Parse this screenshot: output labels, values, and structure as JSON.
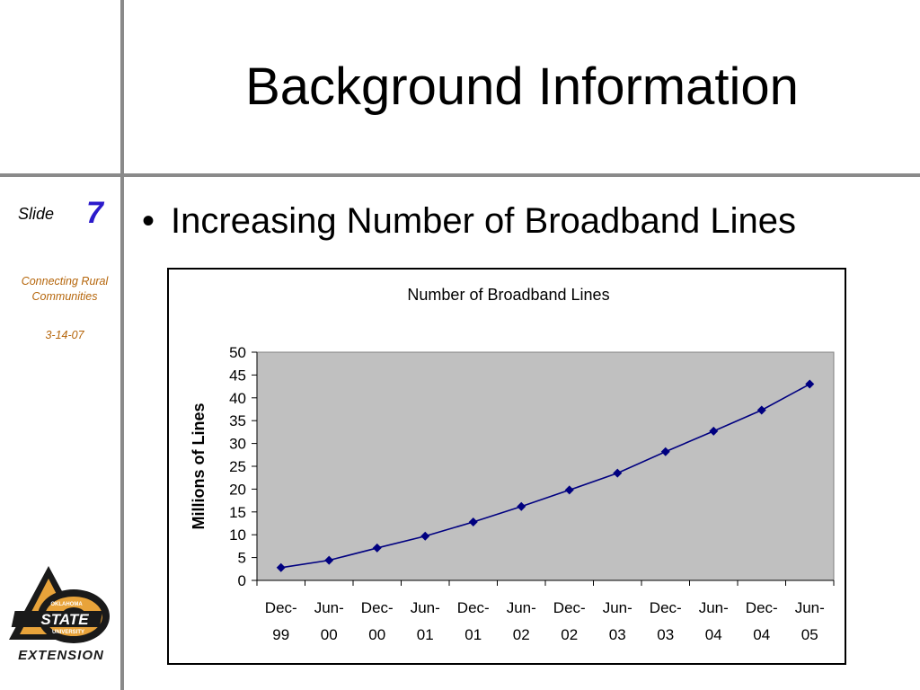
{
  "slide": {
    "title": "Background Information",
    "slide_label": "Slide",
    "slide_number": "7",
    "sidebar_text": "Connecting Rural Communities",
    "sidebar_date": "3-14-07",
    "bullet": "Increasing Number of Broadband Lines",
    "logo_text": {
      "top": "OKLAHOMA",
      "main": "STATE",
      "sub": "UNIVERSITY",
      "bottom": "EXTENSION"
    },
    "colors": {
      "divider": "#8a8a8a",
      "slide_number": "#2b1acb",
      "sidebar_text": "#b5650a",
      "plot_area": "#c0c0c0",
      "series": "#000080",
      "logo_orange": "#e8a33a"
    }
  },
  "chart_data": {
    "type": "line",
    "title": "Number of Broadband Lines",
    "xlabel": "",
    "ylabel": "Millions of Lines",
    "ylim": [
      0,
      50
    ],
    "y_ticks": [
      "0",
      "5",
      "10",
      "15",
      "20",
      "25",
      "30",
      "35",
      "40",
      "45",
      "50"
    ],
    "categories": [
      [
        "Dec-",
        "99"
      ],
      [
        "Jun-",
        "00"
      ],
      [
        "Dec-",
        "00"
      ],
      [
        "Jun-",
        "01"
      ],
      [
        "Dec-",
        "01"
      ],
      [
        "Jun-",
        "02"
      ],
      [
        "Dec-",
        "02"
      ],
      [
        "Jun-",
        "03"
      ],
      [
        "Dec-",
        "03"
      ],
      [
        "Jun-",
        "04"
      ],
      [
        "Dec-",
        "04"
      ],
      [
        "Jun-",
        "05"
      ]
    ],
    "series": [
      {
        "values": [
          2.8,
          4.4,
          7.1,
          9.7,
          12.8,
          16.2,
          19.8,
          23.5,
          28.2,
          32.7,
          37.3,
          43.0
        ],
        "color": "#000080",
        "marker": "diamond"
      }
    ],
    "grid": false,
    "legend": "none",
    "plot_background": "#c0c0c0"
  }
}
